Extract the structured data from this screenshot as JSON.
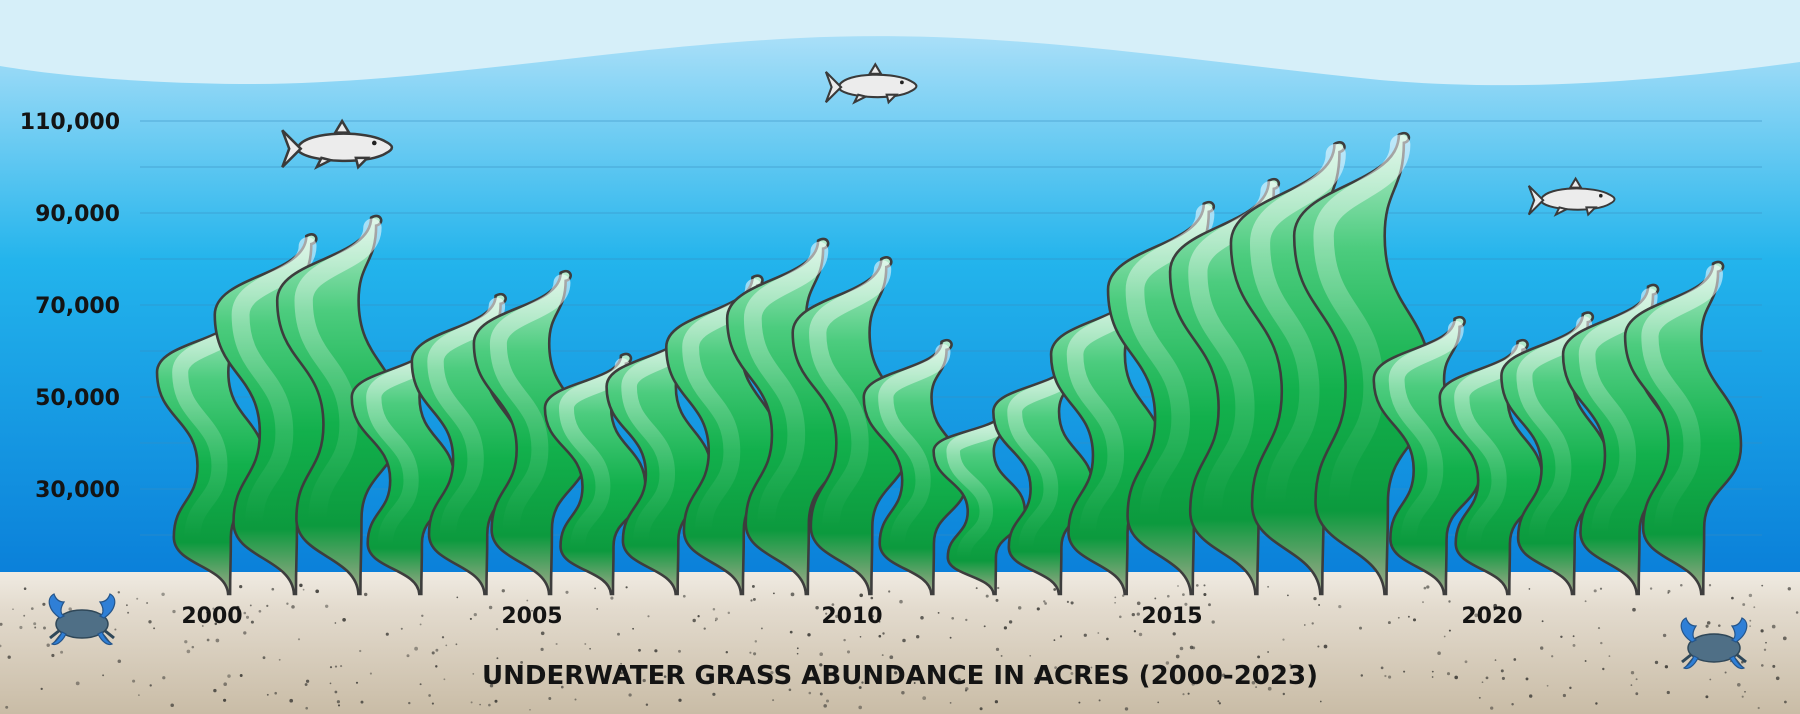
{
  "chart_data": {
    "type": "bar",
    "title": "UNDERWATER GRASS ABUNDANCE IN ACRES (2000-2023)",
    "categories": [
      "2000",
      "2001",
      "2002",
      "2003",
      "2004",
      "2005",
      "2006",
      "2007",
      "2008",
      "2009",
      "2010",
      "2011",
      "2012",
      "2013",
      "2014",
      "2015",
      "2016",
      "2017",
      "2018",
      "2019",
      "2020",
      "2021",
      "2022",
      "2023"
    ],
    "values": [
      69000,
      85000,
      89000,
      62000,
      72000,
      77000,
      59000,
      65000,
      76000,
      84000,
      80000,
      62000,
      47000,
      58000,
      74000,
      92000,
      97000,
      105000,
      107000,
      67000,
      62000,
      68000,
      74000,
      79000
    ],
    "x_tick_labels": [
      "2000",
      "2005",
      "2010",
      "2015",
      "2020"
    ],
    "y_tick_values": [
      30000,
      50000,
      70000,
      90000,
      110000
    ],
    "y_tick_labels": [
      "30,000",
      "50,000",
      "70,000",
      "90,000",
      "110,000"
    ],
    "ylim": [
      10000,
      110000
    ],
    "grid": true,
    "colors": {
      "water_top": "#bfe6fa",
      "water_bottom": "#0a7fd9",
      "sand": "#dcd3c4",
      "grass_light": "#a7e3c2",
      "grass_mid": "#16b24e",
      "grass_dark": "#0a8d36",
      "grass_base": "#a8a98f",
      "fish": "#ececec",
      "crab": "#4f6f86"
    }
  },
  "decorations": {
    "fish_icons": [
      "fish-icon",
      "fish-icon",
      "fish-icon"
    ],
    "crab_icons": [
      "crab-icon",
      "crab-icon"
    ]
  }
}
